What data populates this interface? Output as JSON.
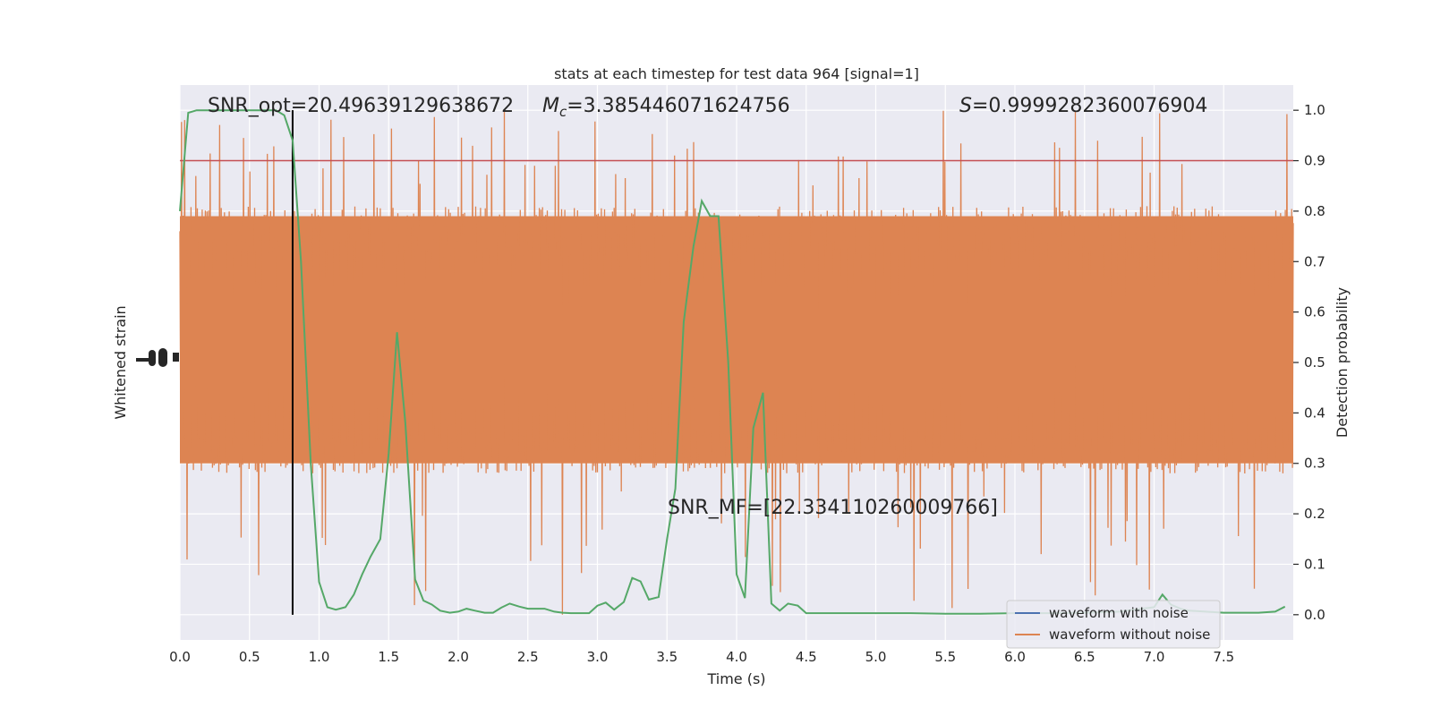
{
  "chart_data": {
    "type": "line",
    "title": "stats at each timestep for test data 964 [signal=1]",
    "xlabel": "Time (s)",
    "ylabel_left": "Whitened strain",
    "ylabel_right": "Detection probability",
    "xlim": [
      0,
      8
    ],
    "ylim_right": [
      -0.05,
      1.05
    ],
    "x_ticks": [
      "0.0",
      "0.5",
      "1.0",
      "1.5",
      "2.0",
      "2.5",
      "3.0",
      "3.5",
      "4.0",
      "4.5",
      "5.0",
      "5.5",
      "6.0",
      "6.5",
      "7.0",
      "7.5"
    ],
    "y_ticks_right": [
      "0.0",
      "0.1",
      "0.2",
      "0.3",
      "0.4",
      "0.5",
      "0.6",
      "0.7",
      "0.8",
      "0.9",
      "1.0"
    ],
    "grid": true,
    "annotations": {
      "snr_opt": "SNR_opt=20.49639129638672",
      "mc_symbol": "M",
      "mc_sub": "c",
      "mc_value": "=3.385446071624756",
      "s_symbol": "S",
      "s_value": "=0.9999282360076904",
      "snr_mf": "SNR_MF=[22.334110260009766]"
    },
    "threshold": {
      "y": 0.9,
      "color": "#c44e52"
    },
    "marker_line_x": 0.81,
    "legend": {
      "placement": "lower-right",
      "entries": [
        {
          "label": "waveform with noise",
          "color": "#4c72b0"
        },
        {
          "label": "waveform without noise",
          "color": "#dd8452"
        }
      ]
    },
    "noise_trace": {
      "name": "waveform without noise",
      "color": "#dd8452",
      "band_right_units": [
        0.3,
        0.79
      ],
      "spike_max": 1.0,
      "spike_min": 0.0
    },
    "series": [
      {
        "name": "Detection probability",
        "color": "#55a868",
        "x": [
          0.0,
          0.06,
          0.12,
          0.19,
          0.25,
          0.31,
          0.37,
          0.44,
          0.5,
          0.56,
          0.62,
          0.69,
          0.75,
          0.81,
          0.87,
          0.94,
          1.0,
          1.06,
          1.12,
          1.19,
          1.25,
          1.31,
          1.37,
          1.44,
          1.5,
          1.56,
          1.62,
          1.69,
          1.75,
          1.81,
          1.87,
          1.94,
          2.0,
          2.06,
          2.12,
          2.19,
          2.25,
          2.31,
          2.37,
          2.44,
          2.5,
          2.56,
          2.62,
          2.69,
          2.75,
          2.81,
          2.87,
          2.94,
          3.0,
          3.06,
          3.12,
          3.19,
          3.25,
          3.31,
          3.37,
          3.44,
          3.5,
          3.56,
          3.62,
          3.69,
          3.75,
          3.81,
          3.87,
          3.94,
          4.0,
          4.06,
          4.12,
          4.19,
          4.25,
          4.31,
          4.37,
          4.44,
          4.5,
          4.75,
          5.0,
          5.25,
          5.5,
          5.75,
          6.0,
          6.25,
          6.5,
          6.75,
          7.0,
          7.06,
          7.12,
          7.19,
          7.25,
          7.5,
          7.75,
          7.87,
          7.94
        ],
        "values": [
          0.8,
          0.995,
          1.0,
          1.0,
          1.0,
          1.0,
          1.0,
          1.0,
          1.0,
          1.0,
          1.0,
          1.0,
          0.99,
          0.94,
          0.7,
          0.3,
          0.065,
          0.015,
          0.01,
          0.015,
          0.04,
          0.08,
          0.115,
          0.15,
          0.32,
          0.56,
          0.38,
          0.07,
          0.028,
          0.02,
          0.008,
          0.004,
          0.006,
          0.012,
          0.008,
          0.004,
          0.004,
          0.014,
          0.022,
          0.016,
          0.012,
          0.012,
          0.012,
          0.006,
          0.004,
          0.003,
          0.003,
          0.003,
          0.018,
          0.024,
          0.01,
          0.025,
          0.073,
          0.066,
          0.03,
          0.035,
          0.15,
          0.25,
          0.58,
          0.73,
          0.82,
          0.79,
          0.79,
          0.5,
          0.08,
          0.033,
          0.37,
          0.44,
          0.022,
          0.008,
          0.022,
          0.018,
          0.003,
          0.003,
          0.003,
          0.003,
          0.002,
          0.002,
          0.003,
          0.003,
          0.004,
          0.006,
          0.015,
          0.04,
          0.02,
          0.012,
          0.008,
          0.004,
          0.004,
          0.006,
          0.016
        ]
      }
    ]
  }
}
